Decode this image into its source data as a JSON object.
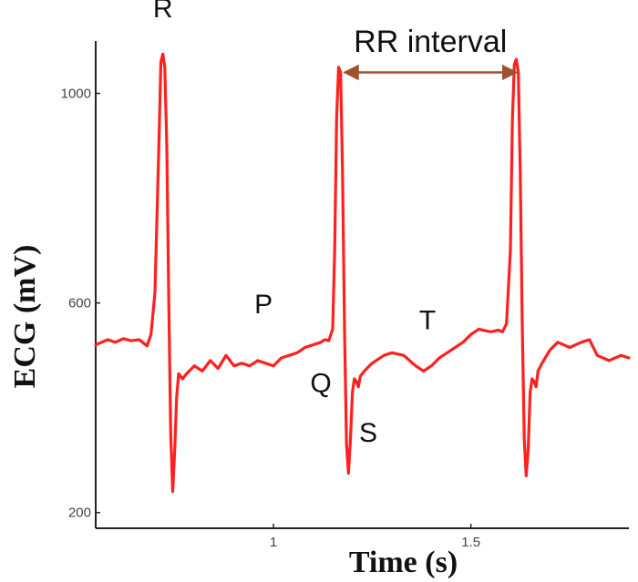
{
  "chart_data": {
    "type": "line",
    "title": "",
    "xlabel": "Time (s)",
    "ylabel": "ECG (mV)",
    "xlim": [
      0.55,
      1.9
    ],
    "ylim": [
      170,
      1100
    ],
    "x_ticks": [
      {
        "value": 1,
        "label": "1"
      },
      {
        "value": 1.5,
        "label": "1.5"
      }
    ],
    "y_ticks": [
      {
        "value": 200,
        "label": "200"
      },
      {
        "value": 600,
        "label": "600"
      },
      {
        "value": 1000,
        "label": "1000"
      }
    ],
    "grid": false,
    "series": [
      {
        "color": "#ff2020",
        "x": [
          0.55,
          0.58,
          0.6,
          0.62,
          0.64,
          0.66,
          0.68,
          0.69,
          0.7,
          0.71,
          0.715,
          0.72,
          0.725,
          0.73,
          0.735,
          0.74,
          0.745,
          0.75,
          0.755,
          0.76,
          0.765,
          0.77,
          0.78,
          0.8,
          0.82,
          0.84,
          0.86,
          0.88,
          0.9,
          0.92,
          0.94,
          0.96,
          0.98,
          1.0,
          1.02,
          1.04,
          1.06,
          1.08,
          1.1,
          1.12,
          1.13,
          1.14,
          1.15,
          1.155,
          1.16,
          1.165,
          1.17,
          1.175,
          1.18,
          1.185,
          1.19,
          1.195,
          1.2,
          1.205,
          1.21,
          1.215,
          1.22,
          1.23,
          1.25,
          1.28,
          1.3,
          1.33,
          1.36,
          1.38,
          1.4,
          1.42,
          1.45,
          1.48,
          1.5,
          1.52,
          1.55,
          1.57,
          1.58,
          1.59,
          1.6,
          1.605,
          1.61,
          1.615,
          1.62,
          1.625,
          1.63,
          1.635,
          1.64,
          1.645,
          1.65,
          1.655,
          1.66,
          1.665,
          1.67,
          1.68,
          1.7,
          1.72,
          1.75,
          1.78,
          1.8,
          1.82,
          1.85,
          1.88,
          1.9
        ],
        "y": [
          520,
          530,
          525,
          532,
          528,
          530,
          518,
          540,
          620,
          900,
          1060,
          1075,
          1050,
          900,
          600,
          350,
          240,
          320,
          420,
          465,
          460,
          455,
          465,
          480,
          470,
          490,
          475,
          500,
          480,
          485,
          480,
          490,
          485,
          480,
          495,
          500,
          505,
          515,
          520,
          525,
          530,
          528,
          550,
          700,
          950,
          1050,
          1040,
          850,
          550,
          330,
          275,
          340,
          430,
          455,
          450,
          440,
          460,
          470,
          485,
          500,
          505,
          500,
          480,
          470,
          480,
          495,
          510,
          525,
          540,
          550,
          545,
          548,
          545,
          560,
          700,
          950,
          1055,
          1065,
          1040,
          850,
          560,
          340,
          270,
          320,
          430,
          455,
          450,
          440,
          470,
          485,
          510,
          525,
          515,
          525,
          530,
          500,
          490,
          500,
          495
        ]
      }
    ],
    "annotations": [
      {
        "text": "R",
        "x": 0.72,
        "y": 1145
      },
      {
        "text": "P",
        "x": 0.975,
        "y": 580
      },
      {
        "text": "Q",
        "x": 1.12,
        "y": 430
      },
      {
        "text": "S",
        "x": 1.24,
        "y": 335
      },
      {
        "text": "T",
        "x": 1.39,
        "y": 550
      }
    ],
    "interval": {
      "label": "RR interval",
      "x_start": 1.18,
      "x_end": 1.615,
      "y": 1040,
      "color": "#a0522d"
    }
  }
}
